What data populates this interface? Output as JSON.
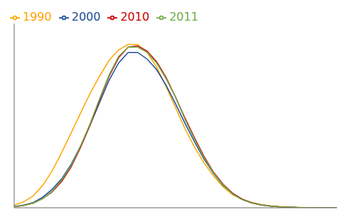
{
  "chart_data": {
    "type": "line",
    "x": [
      15,
      16,
      17,
      18,
      19,
      20,
      21,
      22,
      23,
      24,
      25,
      26,
      27,
      28,
      29,
      30,
      31,
      32,
      33,
      34,
      35,
      36,
      37,
      38,
      39,
      40,
      41,
      42,
      43,
      44,
      45,
      46,
      47,
      48,
      49
    ],
    "series": [
      {
        "name": "1990",
        "color": "#FFA500",
        "values": [
          2.0,
          4.5,
          9.0,
          17.0,
          28.0,
          42.0,
          57.0,
          72.0,
          87.0,
          100.0,
          112.0,
          120.0,
          124.0,
          124.0,
          118.0,
          107.0,
          92.0,
          76.0,
          60.0,
          46.0,
          34.0,
          24.0,
          16.0,
          10.0,
          6.5,
          4.0,
          2.5,
          1.5,
          0.9,
          0.5,
          0.3,
          0.15,
          0.08,
          0.04,
          0.02
        ]
      },
      {
        "name": "2000",
        "color": "#1F4E9C",
        "values": [
          1.0,
          2.0,
          4.0,
          8.0,
          14.0,
          22.0,
          33.0,
          47.0,
          63.0,
          80.0,
          97.0,
          110.0,
          118.0,
          118.0,
          113.0,
          105.0,
          93.0,
          79.0,
          64.0,
          50.0,
          37.0,
          26.0,
          17.0,
          11.0,
          6.5,
          3.8,
          2.2,
          1.2,
          0.7,
          0.4,
          0.2,
          0.1,
          0.05,
          0.03,
          0.01
        ]
      },
      {
        "name": "2010",
        "color": "#CC0000",
        "values": [
          0.8,
          1.8,
          3.5,
          7.0,
          12.0,
          20.0,
          31.0,
          46.0,
          63.0,
          82.0,
          100.0,
          114.0,
          122.0,
          123.0,
          119.0,
          111.0,
          99.0,
          84.0,
          68.0,
          53.0,
          39.0,
          27.0,
          18.0,
          11.0,
          6.5,
          3.8,
          2.2,
          1.3,
          0.7,
          0.4,
          0.2,
          0.1,
          0.05,
          0.02,
          0.01
        ]
      },
      {
        "name": "2011",
        "color": "#70AD47",
        "values": [
          0.8,
          1.8,
          3.5,
          7.0,
          12.5,
          21.0,
          32.0,
          47.0,
          64.0,
          83.0,
          101.0,
          115.0,
          122.0,
          122.0,
          118.0,
          110.0,
          98.0,
          84.0,
          67.0,
          52.0,
          38.0,
          26.5,
          17.5,
          10.5,
          6.2,
          3.6,
          2.1,
          1.2,
          0.65,
          0.35,
          0.18,
          0.09,
          0.05,
          0.02,
          0.01
        ]
      }
    ],
    "xlim": [
      15,
      49
    ],
    "ylim": [
      0,
      140
    ],
    "yticks": [
      0,
      20,
      40,
      60,
      80,
      100,
      120,
      140
    ],
    "grid": "y",
    "legend": "upper left",
    "tick_labels": false
  }
}
